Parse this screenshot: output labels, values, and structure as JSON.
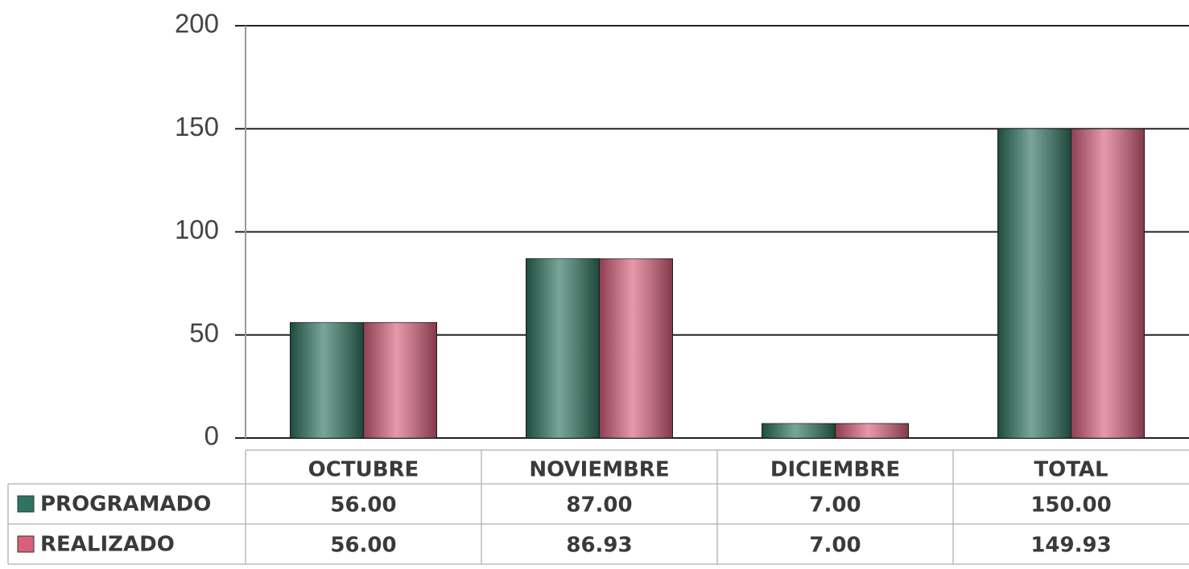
{
  "chart_data": {
    "type": "bar",
    "categories": [
      "OCTUBRE",
      "NOVIEMBRE",
      "DICIEMBRE",
      "TOTAL"
    ],
    "series": [
      {
        "name": "PROGRAMADO",
        "color": "#2e7560",
        "values": [
          56,
          87,
          7,
          150
        ],
        "value_labels": [
          "56.00",
          "87.00",
          "7.00",
          "150.00"
        ]
      },
      {
        "name": "REALIZADO",
        "color": "#d9607c",
        "values": [
          56,
          86.93,
          7,
          149.93
        ],
        "value_labels": [
          "56.00",
          "86.93",
          "7.00",
          "149.93"
        ]
      }
    ],
    "ylim": [
      0,
      200
    ],
    "yticks": [
      0,
      50,
      100,
      150,
      200
    ],
    "grid": true
  }
}
